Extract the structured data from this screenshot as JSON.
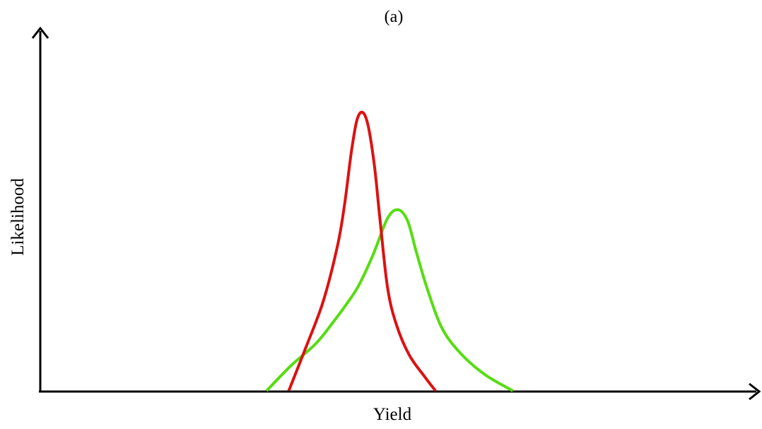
{
  "chart_data": {
    "type": "line",
    "title": "(a)",
    "xlabel": "Yield",
    "ylabel": "Likelihood",
    "xlim": [
      0,
      100
    ],
    "ylim": [
      0,
      100
    ],
    "grid": false,
    "legend": "none",
    "axis_color": "#000000",
    "series": [
      {
        "color": "#dd1111",
        "x": [
          34.7,
          37.0,
          39.5,
          41.5,
          42.5,
          43.4,
          44.2,
          45.0,
          45.8,
          46.7,
          47.5,
          48.5,
          49.7,
          51.5,
          53.7,
          55.2
        ],
        "y": [
          0,
          15,
          32,
          52,
          67,
          85,
          97,
          100,
          95,
          80,
          60,
          37,
          24,
          13,
          5,
          0
        ]
      },
      {
        "color": "#55dd11",
        "x": [
          31.6,
          35.0,
          38.5,
          41.0,
          43.0,
          44.5,
          46.5,
          48.5,
          50.0,
          51.3,
          52.5,
          54.0,
          56.0,
          58.5,
          62.0,
          66.0
        ],
        "y": [
          0,
          9,
          17,
          25,
          32,
          38,
          49,
          62,
          65,
          61,
          50,
          37,
          23,
          14,
          6,
          0
        ]
      }
    ]
  }
}
